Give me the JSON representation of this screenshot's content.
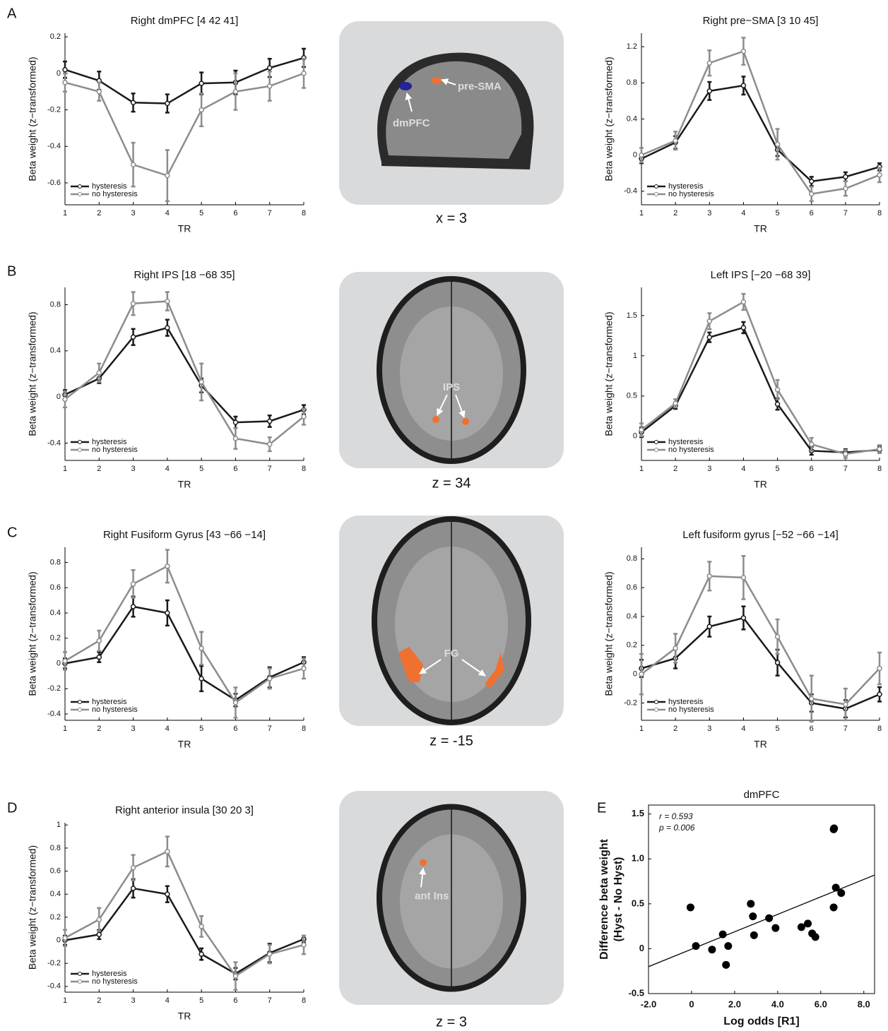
{
  "chart_data": [
    {
      "type": "line",
      "title": "Right dmPFC [4 42 41]",
      "xlabel": "TR",
      "ylabel": "Beta weight (z−transformed)",
      "x": [
        1,
        2,
        3,
        4,
        5,
        6,
        7,
        8
      ],
      "xlim": [
        1,
        8
      ],
      "xticks": [
        1,
        2,
        3,
        4,
        5,
        6,
        7,
        8
      ],
      "ylim": [
        -0.72,
        0.22
      ],
      "yticks": [
        -0.6,
        -0.4,
        -0.2,
        0,
        0.2
      ],
      "legend": "lower left",
      "series": [
        {
          "name": "hysteresis",
          "color": "#1a1a1a",
          "values": [
            0.02,
            -0.04,
            -0.16,
            -0.165,
            -0.055,
            -0.05,
            0.03,
            0.085
          ],
          "errors": [
            0.045,
            0.05,
            0.05,
            0.05,
            0.06,
            0.065,
            0.05,
            0.05
          ]
        },
        {
          "name": "no hysteresis",
          "color": "#8c8c8c",
          "values": [
            -0.05,
            -0.1,
            -0.5,
            -0.56,
            -0.2,
            -0.1,
            -0.07,
            0.0
          ],
          "errors": [
            0.05,
            0.05,
            0.12,
            0.14,
            0.09,
            0.1,
            0.08,
            0.08
          ]
        }
      ]
    },
    {
      "type": "line",
      "title": "Right pre−SMA [3 10 45]",
      "xlabel": "TR",
      "ylabel": "Beta weight (z−transformed)",
      "x": [
        1,
        2,
        3,
        4,
        5,
        6,
        7,
        8
      ],
      "xlim": [
        1,
        8
      ],
      "xticks": [
        1,
        2,
        3,
        4,
        5,
        6,
        7,
        8
      ],
      "ylim": [
        -0.55,
        1.35
      ],
      "yticks": [
        -0.4,
        0,
        0.4,
        0.8,
        1.2
      ],
      "legend": "lower left",
      "series": [
        {
          "name": "hysteresis",
          "color": "#1a1a1a",
          "values": [
            -0.04,
            0.14,
            0.71,
            0.77,
            0.06,
            -0.29,
            -0.24,
            -0.13
          ],
          "errors": [
            0.05,
            0.07,
            0.1,
            0.1,
            0.07,
            0.05,
            0.05,
            0.04
          ]
        },
        {
          "name": "no hysteresis",
          "color": "#8c8c8c",
          "values": [
            0.0,
            0.16,
            1.02,
            1.15,
            0.12,
            -0.43,
            -0.37,
            -0.22
          ],
          "errors": [
            0.08,
            0.1,
            0.14,
            0.15,
            0.17,
            0.08,
            0.08,
            0.08
          ]
        }
      ]
    },
    {
      "type": "line",
      "title": "Right IPS [18 −68 35]",
      "xlabel": "TR",
      "ylabel": "Beta weight (z−transformed)",
      "x": [
        1,
        2,
        3,
        4,
        5,
        6,
        7,
        8
      ],
      "xlim": [
        1,
        8
      ],
      "xticks": [
        1,
        2,
        3,
        4,
        5,
        6,
        7,
        8
      ],
      "ylim": [
        -0.55,
        0.95
      ],
      "yticks": [
        -0.4,
        0,
        0.4,
        0.8
      ],
      "legend": "lower left",
      "series": [
        {
          "name": "hysteresis",
          "color": "#1a1a1a",
          "values": [
            0.02,
            0.16,
            0.52,
            0.6,
            0.1,
            -0.22,
            -0.21,
            -0.11
          ],
          "errors": [
            0.04,
            0.04,
            0.07,
            0.07,
            0.06,
            0.05,
            0.05,
            0.04
          ]
        },
        {
          "name": "no hysteresis",
          "color": "#8c8c8c",
          "values": [
            -0.02,
            0.21,
            0.81,
            0.83,
            0.13,
            -0.36,
            -0.41,
            -0.17
          ],
          "errors": [
            0.07,
            0.08,
            0.1,
            0.08,
            0.16,
            0.09,
            0.06,
            0.07
          ]
        }
      ]
    },
    {
      "type": "line",
      "title": "Left IPS [−20 −68 39]",
      "xlabel": "TR",
      "ylabel": "Beta weight (z−transformed)",
      "x": [
        1,
        2,
        3,
        4,
        5,
        6,
        7,
        8
      ],
      "xlim": [
        1,
        8
      ],
      "xticks": [
        1,
        2,
        3,
        4,
        5,
        6,
        7,
        8
      ],
      "ylim": [
        -0.3,
        1.85
      ],
      "yticks": [
        0,
        0.5,
        1,
        1.5
      ],
      "legend": "lower left",
      "series": [
        {
          "name": "hysteresis",
          "color": "#1a1a1a",
          "values": [
            0.05,
            0.38,
            1.23,
            1.35,
            0.4,
            -0.18,
            -0.2,
            -0.17
          ],
          "errors": [
            0.06,
            0.04,
            0.06,
            0.07,
            0.07,
            0.05,
            0.04,
            0.04
          ]
        },
        {
          "name": "no hysteresis",
          "color": "#8c8c8c",
          "values": [
            0.08,
            0.41,
            1.43,
            1.67,
            0.58,
            -0.1,
            -0.22,
            -0.16
          ],
          "errors": [
            0.08,
            0.05,
            0.1,
            0.1,
            0.12,
            0.08,
            0.05,
            0.05
          ]
        }
      ]
    },
    {
      "type": "line",
      "title": "Right Fusiform Gyrus [43 −66 −14]",
      "xlabel": "TR",
      "ylabel": "Beta weight (z−transformed)",
      "x": [
        1,
        2,
        3,
        4,
        5,
        6,
        7,
        8
      ],
      "xlim": [
        1,
        8
      ],
      "xticks": [
        1,
        2,
        3,
        4,
        5,
        6,
        7,
        8
      ],
      "ylim": [
        -0.45,
        0.92
      ],
      "yticks": [
        -0.4,
        -0.2,
        0,
        0.2,
        0.4,
        0.6,
        0.8
      ],
      "legend": "lower left",
      "series": [
        {
          "name": "hysteresis",
          "color": "#1a1a1a",
          "values": [
            0,
            0.05,
            0.45,
            0.4,
            -0.12,
            -0.29,
            -0.11,
            0.01
          ],
          "errors": [
            0.04,
            0.04,
            0.08,
            0.1,
            0.1,
            0.05,
            0.08,
            0.04
          ]
        },
        {
          "name": "no hysteresis",
          "color": "#8c8c8c",
          "values": [
            0.02,
            0.18,
            0.63,
            0.77,
            0.12,
            -0.31,
            -0.12,
            -0.04
          ],
          "errors": [
            0.07,
            0.08,
            0.11,
            0.13,
            0.13,
            0.12,
            0.08,
            0.08
          ]
        }
      ]
    },
    {
      "type": "line",
      "title": "Left  fusiform gyrus [−52 −66 −14]",
      "xlabel": "TR",
      "ylabel": "Beta weight (z−transformed)",
      "x": [
        1,
        2,
        3,
        4,
        5,
        6,
        7,
        8
      ],
      "xlim": [
        1,
        8
      ],
      "xticks": [
        1,
        2,
        3,
        4,
        5,
        6,
        7,
        8
      ],
      "ylim": [
        -0.32,
        0.88
      ],
      "yticks": [
        -0.2,
        0,
        0.2,
        0.4,
        0.6,
        0.8
      ],
      "legend": "lower left",
      "series": [
        {
          "name": "hysteresis",
          "color": "#1a1a1a",
          "values": [
            0.04,
            0.11,
            0.33,
            0.39,
            0.08,
            -0.2,
            -0.24,
            -0.14
          ],
          "errors": [
            0.06,
            0.07,
            0.07,
            0.08,
            0.09,
            0.06,
            0.06,
            0.05
          ]
        },
        {
          "name": "no hysteresis",
          "color": "#8c8c8c",
          "values": [
            0.0,
            0.18,
            0.68,
            0.67,
            0.26,
            -0.17,
            -0.21,
            0.04
          ],
          "errors": [
            0.14,
            0.1,
            0.1,
            0.15,
            0.12,
            0.16,
            0.11,
            0.11
          ]
        }
      ]
    },
    {
      "type": "line",
      "title": "Right anterior insula [30 20 3]",
      "xlabel": "TR",
      "ylabel": "Beta weight (z−transformed)",
      "x": [
        1,
        2,
        3,
        4,
        5,
        6,
        7,
        8
      ],
      "xlim": [
        1,
        8
      ],
      "xticks": [
        1,
        2,
        3,
        4,
        5,
        6,
        7,
        8
      ],
      "ylim": [
        -0.45,
        1.02
      ],
      "yticks": [
        -0.4,
        -0.2,
        0,
        0.2,
        0.4,
        0.6,
        0.8,
        1
      ],
      "legend": "lower left",
      "series": [
        {
          "name": "hysteresis",
          "color": "#1a1a1a",
          "values": [
            0,
            0.05,
            0.45,
            0.4,
            -0.12,
            -0.29,
            -0.11,
            0.01
          ],
          "errors": [
            0.04,
            0.04,
            0.08,
            0.07,
            0.05,
            0.05,
            0.08,
            0.03
          ]
        },
        {
          "name": "no hysteresis",
          "color": "#8c8c8c",
          "values": [
            0.02,
            0.18,
            0.63,
            0.77,
            0.12,
            -0.31,
            -0.12,
            -0.04
          ],
          "errors": [
            0.07,
            0.1,
            0.11,
            0.13,
            0.09,
            0.12,
            0.08,
            0.08
          ]
        }
      ]
    },
    {
      "type": "scatter",
      "title": "dmPFC",
      "xlabel": "Log odds [R1]",
      "ylabel": [
        "Difference  beta weight",
        "(Hyst - No Hyst)"
      ],
      "annotations": [
        "r = 0.593",
        "p = 0.006"
      ],
      "xlim": [
        -2,
        8.5
      ],
      "xticks": [
        {
          "value": -2,
          "label": "-2.0"
        },
        0,
        {
          "value": 2,
          "label": "2.0"
        },
        {
          "value": 4,
          "label": "4.0"
        },
        {
          "value": 6,
          "label": "6.0"
        },
        {
          "value": 8,
          "label": "8.0"
        }
      ],
      "ylim": [
        -0.5,
        1.6
      ],
      "yticks": [
        -0.5,
        0,
        0.5,
        {
          "value": 1,
          "label": "1.0"
        },
        1.5
      ],
      "color": "#000000",
      "x": [
        -0.05,
        0.2,
        0.95,
        1.45,
        1.6,
        1.7,
        2.75,
        2.85,
        2.9,
        3.6,
        3.9,
        5.1,
        5.4,
        5.6,
        5.75,
        6.6,
        6.62,
        6.7,
        6.95,
        6.6
      ],
      "values": [
        0.46,
        0.03,
        -0.01,
        0.16,
        -0.18,
        0.03,
        0.5,
        0.36,
        0.15,
        0.34,
        0.23,
        0.24,
        0.28,
        0.17,
        0.13,
        1.33,
        1.34,
        0.68,
        0.62,
        0.46
      ],
      "trend_line": {
        "x": [
          -2,
          8.5
        ],
        "y": [
          -0.2,
          0.82
        ]
      }
    }
  ],
  "panels": [
    {
      "letter": "A",
      "slice": "x = 3",
      "regions": [
        "pre-SMA",
        "dmPFC"
      ]
    },
    {
      "letter": "B",
      "slice": "z = 34",
      "regions": [
        "IPS"
      ]
    },
    {
      "letter": "C",
      "slice": "z = -15",
      "regions": [
        "FG"
      ]
    },
    {
      "letter": "D",
      "slice": "z = 3",
      "regions": [
        "ant Ins"
      ]
    },
    {
      "letter": "E"
    }
  ]
}
